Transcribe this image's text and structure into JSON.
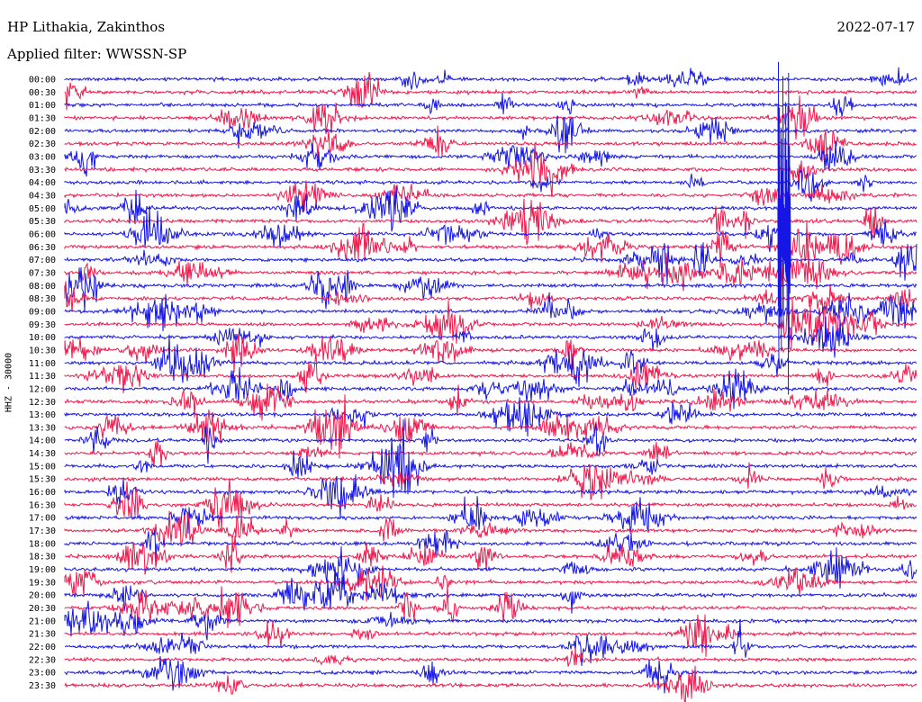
{
  "header": {
    "station": "HP Lithakia, Zakinthos",
    "filter": "Applied filter: WWSSN-SP",
    "date": "2022-07-17"
  },
  "channel_label": "HHZ - 30000",
  "chart_data": {
    "type": "line",
    "title": "HP Lithakia, Zakinthos",
    "subtitle": "Applied filter: WWSSN-SP",
    "date": "2022-07-17",
    "ylabel": "HHZ - 30000",
    "row_interval_minutes": 30,
    "row_labels": [
      "00:00",
      "00:30",
      "01:00",
      "01:30",
      "02:00",
      "02:30",
      "03:00",
      "03:30",
      "04:00",
      "04:30",
      "05:00",
      "05:30",
      "06:00",
      "06:30",
      "07:00",
      "07:30",
      "08:00",
      "08:30",
      "09:00",
      "09:30",
      "10:00",
      "10:30",
      "11:00",
      "11:30",
      "12:00",
      "12:30",
      "13:00",
      "13:30",
      "14:00",
      "14:30",
      "15:00",
      "15:30",
      "16:00",
      "16:30",
      "17:00",
      "17:30",
      "18:00",
      "18:30",
      "19:00",
      "19:30",
      "20:00",
      "20:30",
      "21:00",
      "21:30",
      "22:00",
      "22:30",
      "23:00",
      "23:30"
    ],
    "trace_colors": [
      "#1515e6",
      "#f0184c"
    ],
    "major_event": {
      "row_label": "06:00",
      "minute_in_row": 25.2
    },
    "grid": false,
    "legend": "none"
  }
}
